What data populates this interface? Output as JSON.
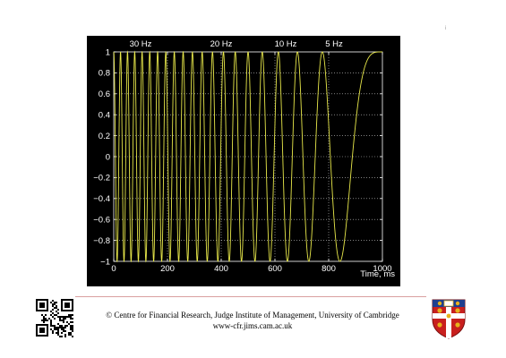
{
  "chart_data": {
    "type": "line",
    "series": [
      {
        "formula": "cos(2*pi*f(t)*t)",
        "description_of_curve": "linear chirp, frequency falling from ~40 Hz at t=0 to ~0 Hz at t=1000 ms",
        "start_frequency_hz": 40,
        "end_frequency_hz": 0,
        "color": "#e8e84a"
      }
    ],
    "frequency_annotations": [
      {
        "label": "30 Hz",
        "x": 100
      },
      {
        "label": "20 Hz",
        "x": 400
      },
      {
        "label": "10 Hz",
        "x": 640
      },
      {
        "label": "5 Hz",
        "x": 820
      }
    ],
    "xlabel": "Time, ms",
    "xlim": [
      0,
      1000
    ],
    "ylim": [
      -1,
      1
    ],
    "x_ticks": [
      0,
      200,
      400,
      600,
      800,
      1000
    ],
    "y_ticks": [
      1,
      0.8,
      0.6,
      0.4,
      0.2,
      0,
      -0.2,
      -0.4,
      -0.6,
      -0.8,
      -1
    ],
    "y_tick_labels": [
      "1",
      "0.8",
      "0.6",
      "0.4",
      "0.2",
      "0",
      "−0.2",
      "−0.4",
      "−0.6",
      "−0.8",
      "−1"
    ],
    "grid": true,
    "background": "#000000",
    "axis_color": "#ffffff",
    "grid_color": "#ffffff"
  },
  "footer": {
    "line1": "© Centre for Financial Research, Judge Institute of  Management, University of Cambridge",
    "line2": "www-cfr.jims.cam.ac.uk"
  },
  "corner_mark": "i",
  "colors": {
    "divider": "#d9a0a0",
    "crest_red": "#c8201e",
    "crest_gold": "#e6b21c"
  }
}
